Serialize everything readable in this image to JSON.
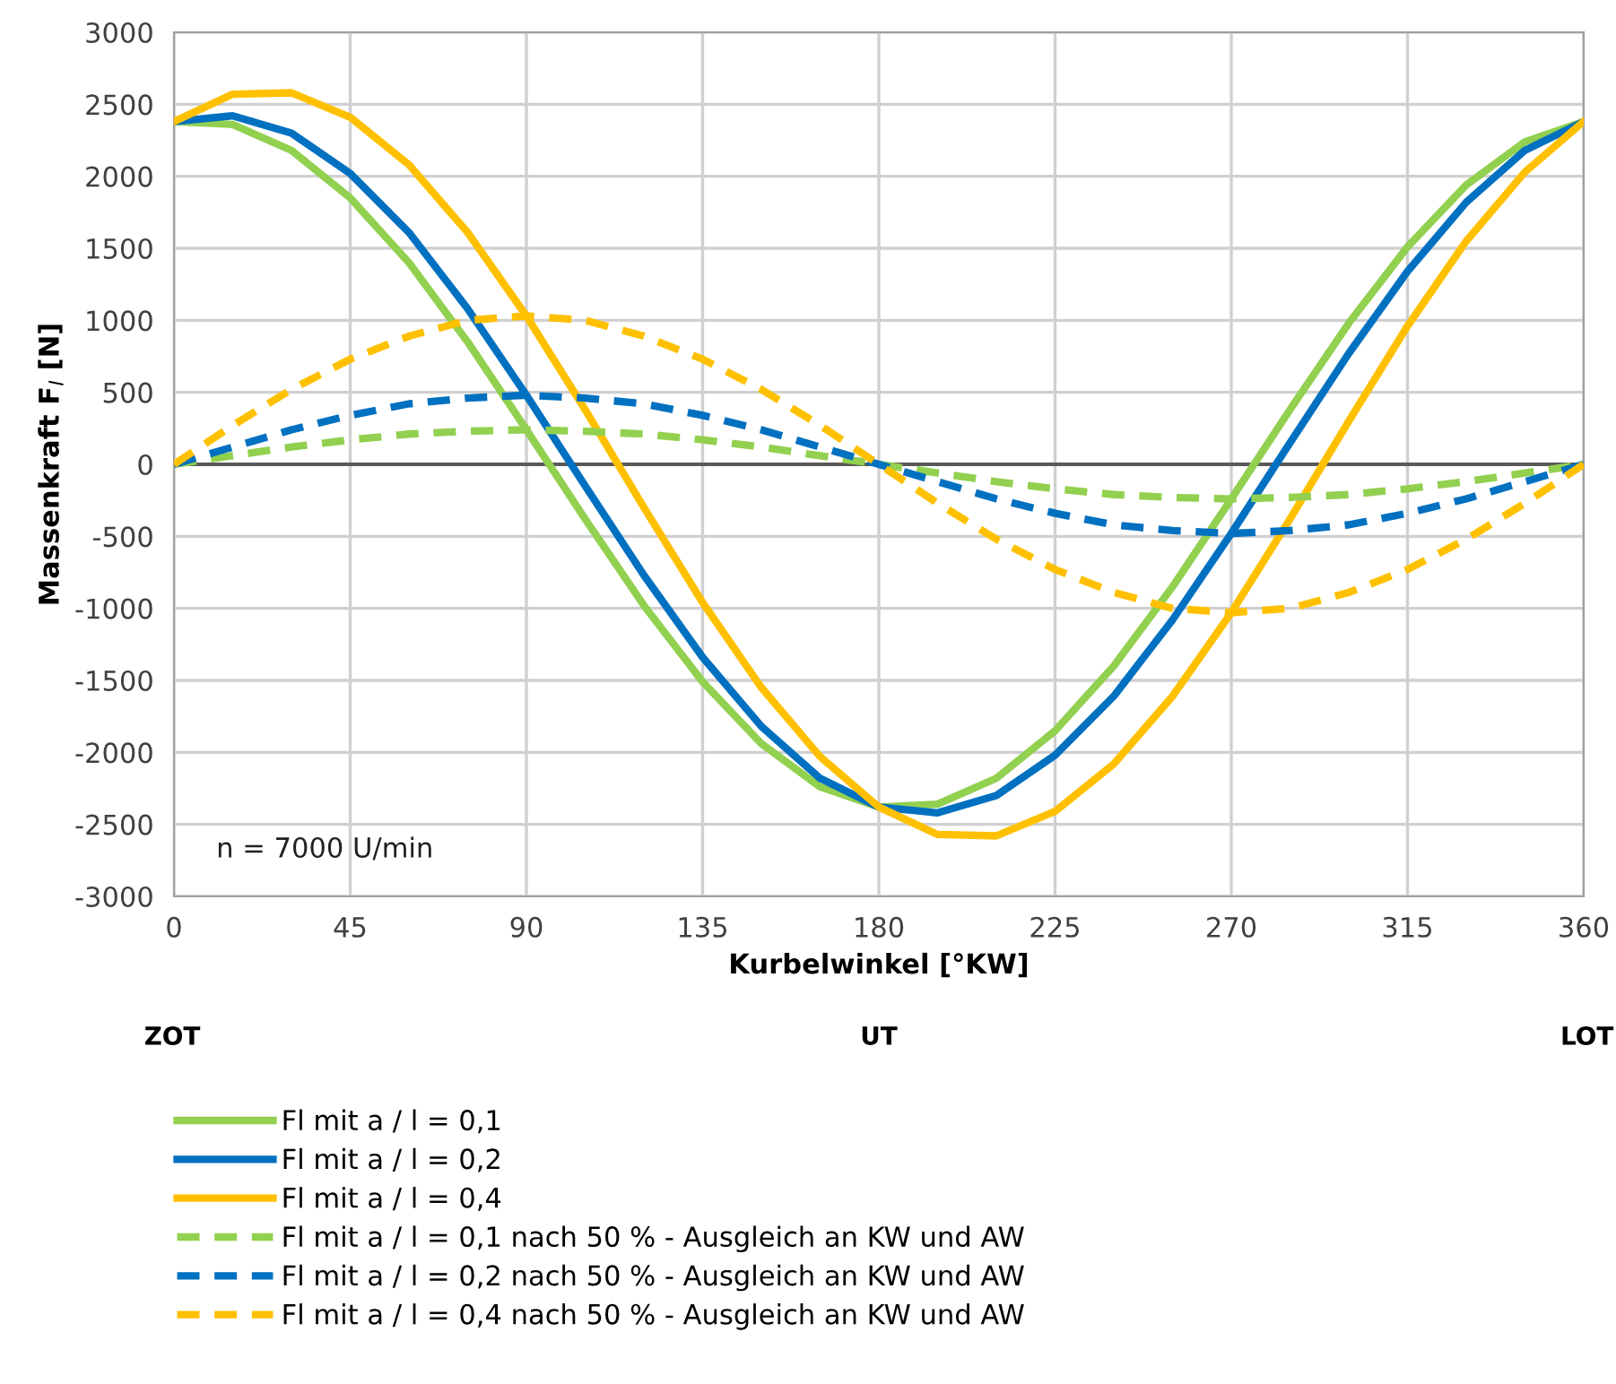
{
  "chart_data": {
    "type": "line",
    "xlabel": "Kurbelwinkel [°KW]",
    "ylabel": "Massenkraft F$_{l}$ [N]",
    "x": [
      0,
      15,
      30,
      45,
      60,
      75,
      90,
      105,
      120,
      135,
      150,
      165,
      180,
      195,
      210,
      225,
      240,
      255,
      270,
      285,
      300,
      315,
      330,
      345,
      360
    ],
    "series": [
      {
        "name": "Fl mit a / l = 0,1",
        "color": "#92d050",
        "line_style": "solid",
        "values": [
          2380,
          2360,
          2180,
          1850,
          1400,
          850,
          240,
          -380,
          -980,
          -1510,
          -1940,
          -2240,
          -2380,
          -2360,
          -2180,
          -1850,
          -1400,
          -850,
          -240,
          380,
          980,
          1510,
          1940,
          2240,
          2380
        ]
      },
      {
        "name": "Fl mit a / l = 0,2",
        "color": "#0070c0",
        "line_style": "solid",
        "values": [
          2380,
          2420,
          2300,
          2020,
          1610,
          1080,
          480,
          -150,
          -770,
          -1340,
          -1820,
          -2180,
          -2380,
          -2420,
          -2300,
          -2020,
          -1610,
          -1080,
          -480,
          150,
          770,
          1340,
          1820,
          2180,
          2380
        ]
      },
      {
        "name": "Fl mit a / l = 0,4",
        "color": "#ffc000",
        "line_style": "solid",
        "values": [
          2380,
          2570,
          2580,
          2410,
          2080,
          1610,
          1030,
          380,
          -300,
          -960,
          -1550,
          -2030,
          -2380,
          -2570,
          -2580,
          -2410,
          -2080,
          -1610,
          -1030,
          -380,
          300,
          960,
          1550,
          2030,
          2380
        ]
      },
      {
        "name": "Fl mit a / l = 0,1 nach 50 % - Ausgleich an KW und AW",
        "color": "#92d050",
        "line_style": "dashed",
        "values": [
          0,
          60,
          120,
          170,
          210,
          230,
          240,
          230,
          210,
          170,
          120,
          60,
          0,
          -60,
          -120,
          -170,
          -210,
          -230,
          -240,
          -230,
          -210,
          -170,
          -120,
          -60,
          0
        ]
      },
      {
        "name": "Fl mit a / l = 0,2 nach 50 % - Ausgleich an KW und AW",
        "color": "#0070c0",
        "line_style": "dashed",
        "values": [
          0,
          120,
          240,
          340,
          420,
          460,
          480,
          460,
          420,
          340,
          240,
          120,
          0,
          -120,
          -240,
          -340,
          -420,
          -460,
          -480,
          -460,
          -420,
          -340,
          -240,
          -120,
          0
        ]
      },
      {
        "name": "Fl mit a / l = 0,4 nach 50 % - Ausgleich an KW und AW",
        "color": "#ffc000",
        "line_style": "dashed",
        "values": [
          0,
          270,
          520,
          730,
          890,
          1000,
          1030,
          1000,
          890,
          730,
          520,
          270,
          0,
          -270,
          -520,
          -730,
          -890,
          -1000,
          -1030,
          -1000,
          -890,
          -730,
          -520,
          -270,
          0
        ]
      }
    ],
    "xlim": [
      0,
      360
    ],
    "xticks": [
      0,
      45,
      90,
      135,
      180,
      225,
      270,
      315,
      360
    ],
    "ylim": [
      -3000,
      3000
    ],
    "yticks": [
      -3000,
      -2500,
      -2000,
      -1500,
      -1000,
      -500,
      0,
      500,
      1000,
      1500,
      2000,
      2500,
      3000
    ],
    "ref_lines": [
      {
        "axis": "y",
        "value": 0,
        "color": "#595959"
      }
    ],
    "annotations": [
      "n = 7000 U/min",
      "ZOT",
      "UT",
      "LOT"
    ],
    "grid": true,
    "legend": "bottom",
    "marker": "none"
  }
}
